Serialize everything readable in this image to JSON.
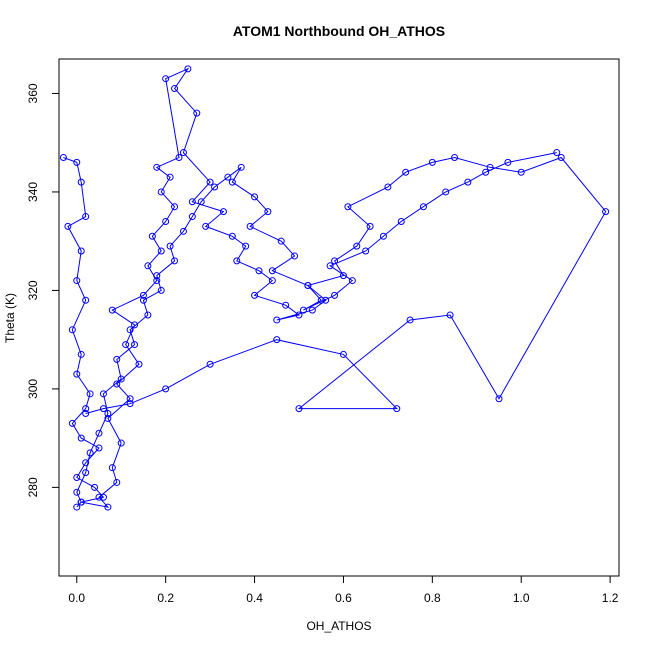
{
  "chart_data": {
    "type": "scatter",
    "title": "ATOM1 Northbound OH_ATHOS",
    "xlabel": "OH_ATHOS",
    "ylabel": "Theta (K)",
    "xlim": [
      -0.04,
      1.22
    ],
    "ylim": [
      262,
      367
    ],
    "xticks": [
      0.0,
      0.2,
      0.4,
      0.6,
      0.8,
      1.0,
      1.2
    ],
    "xtick_labels": [
      "0.0",
      "0.2",
      "0.4",
      "0.6",
      "0.8",
      "1.0",
      "1.2"
    ],
    "yticks": [
      280,
      300,
      320,
      340,
      360
    ],
    "ytick_labels": [
      "280",
      "300",
      "320",
      "340",
      "360"
    ],
    "grid": false,
    "legend": "none",
    "color": "#0000ff",
    "series": [
      {
        "x": [
          -0.03,
          0.0,
          0.01,
          0.02,
          -0.02,
          0.01,
          0.0,
          0.02,
          -0.01,
          0.01,
          0.0,
          0.03,
          0.02,
          -0.01,
          0.01,
          0.05,
          0.02,
          0.0,
          0.04,
          0.06,
          0.01,
          0.07,
          0.05,
          0.09,
          0.08,
          0.1,
          0.07,
          0.12,
          0.09,
          0.14,
          0.11,
          0.13,
          0.08,
          0.15,
          0.18,
          0.16,
          0.19,
          0.17,
          0.2,
          0.22,
          0.19,
          0.21,
          0.18,
          0.23,
          0.2,
          0.25,
          0.22,
          0.27,
          0.24,
          0.3,
          0.26,
          0.33,
          0.29,
          0.35,
          0.38,
          0.36,
          0.41,
          0.44,
          0.4,
          0.47,
          0.5,
          0.45,
          0.53,
          0.56,
          0.52,
          0.6,
          0.58,
          0.63,
          0.66,
          0.61,
          0.7,
          0.74,
          0.8,
          0.85,
          0.93,
          1.0,
          1.09,
          1.19,
          0.95,
          0.84,
          0.75,
          0.5,
          0.72,
          0.6,
          0.45,
          0.3,
          0.2,
          0.12,
          0.06,
          0.02
        ],
        "y": [
          347,
          346,
          342,
          335,
          333,
          328,
          322,
          318,
          312,
          307,
          303,
          299,
          296,
          293,
          290,
          288,
          285,
          282,
          280,
          278,
          277,
          276,
          278,
          281,
          284,
          289,
          294,
          298,
          301,
          305,
          309,
          313,
          316,
          319,
          322,
          325,
          328,
          331,
          334,
          337,
          340,
          343,
          345,
          347,
          363,
          365,
          361,
          356,
          348,
          342,
          338,
          336,
          333,
          331,
          329,
          326,
          324,
          322,
          319,
          317,
          315,
          314,
          316,
          318,
          321,
          323,
          326,
          329,
          333,
          337,
          341,
          344,
          346,
          347,
          345,
          344,
          347,
          336,
          298,
          315,
          314,
          296,
          296,
          307,
          310,
          305,
          300,
          297,
          296,
          295
        ]
      },
      {
        "x": [
          0.0,
          0.01,
          0.0,
          0.02,
          0.03,
          0.05,
          0.07,
          0.06,
          0.1,
          0.09,
          0.13,
          0.12,
          0.16,
          0.15,
          0.19,
          0.18,
          0.22,
          0.21,
          0.24,
          0.26,
          0.28,
          0.31,
          0.34,
          0.37,
          0.35,
          0.4,
          0.43,
          0.39,
          0.46,
          0.49,
          0.44,
          0.52,
          0.55,
          0.51,
          0.58,
          0.62,
          0.57,
          0.65,
          0.69,
          0.73,
          0.78,
          0.83,
          0.88,
          0.92,
          0.97,
          1.08
        ],
        "y": [
          276,
          277,
          279,
          283,
          287,
          291,
          295,
          299,
          302,
          306,
          309,
          312,
          315,
          318,
          320,
          323,
          326,
          329,
          332,
          335,
          338,
          341,
          343,
          345,
          342,
          339,
          336,
          333,
          330,
          327,
          324,
          321,
          318,
          316,
          319,
          322,
          325,
          328,
          331,
          334,
          337,
          340,
          342,
          344,
          346,
          348
        ]
      }
    ]
  }
}
